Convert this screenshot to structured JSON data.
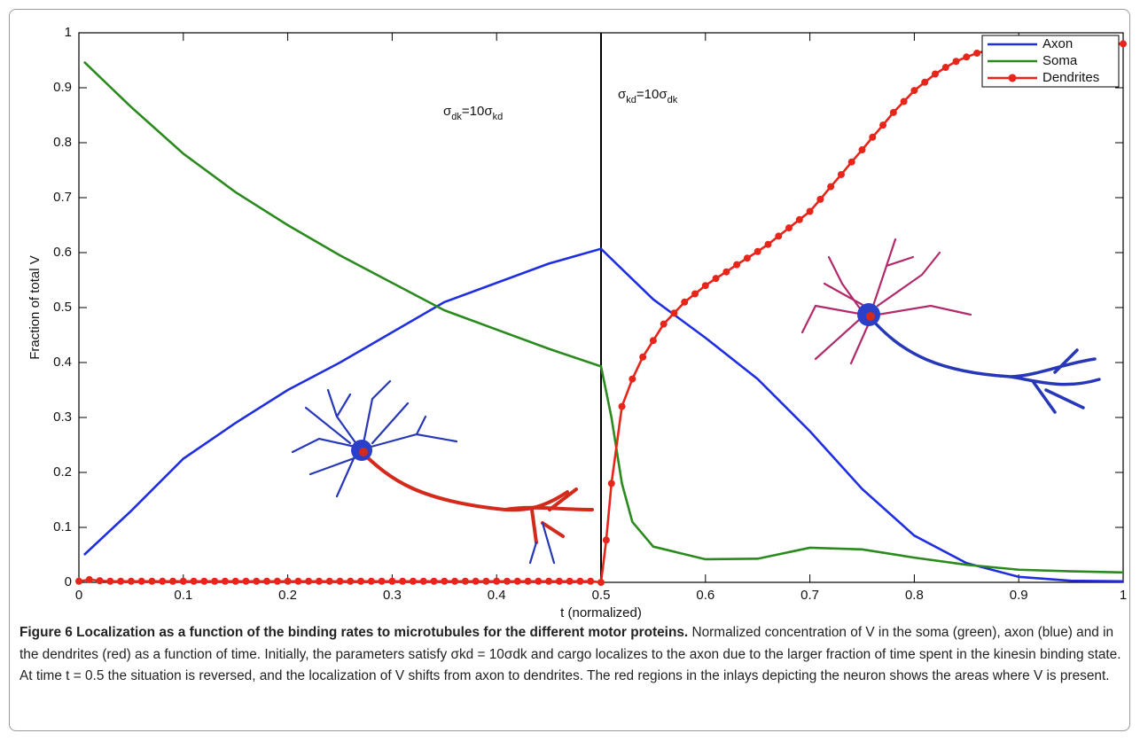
{
  "chart_data": {
    "type": "line",
    "xlabel": "t (normalized)",
    "ylabel": "Fraction of total V",
    "xlim": [
      0,
      1
    ],
    "ylim": [
      0,
      1
    ],
    "xticks": [
      0,
      0.1,
      0.2,
      0.3,
      0.4,
      0.5,
      0.6,
      0.7,
      0.8,
      0.9,
      1
    ],
    "yticks": [
      0,
      0.1,
      0.2,
      0.3,
      0.4,
      0.5,
      0.6,
      0.7,
      0.8,
      0.9,
      1
    ],
    "grid": false,
    "legend": "upper right",
    "vline": 0.5,
    "annotations": [
      [
        "σ",
        "dk",
        "=10σ",
        "kd"
      ],
      [
        "σ",
        "kd",
        "=10σ",
        "dk"
      ]
    ],
    "series": [
      {
        "name": "Axon",
        "color": "#1f2ee0",
        "marker": false,
        "x": [
          0.005,
          0.05,
          0.1,
          0.15,
          0.2,
          0.25,
          0.3,
          0.35,
          0.4,
          0.45,
          0.5,
          0.52,
          0.55,
          0.6,
          0.65,
          0.7,
          0.75,
          0.8,
          0.85,
          0.9,
          0.95,
          1
        ],
        "values": [
          0.05,
          0.13,
          0.225,
          0.29,
          0.35,
          0.4,
          0.455,
          0.51,
          0.545,
          0.58,
          0.607,
          0.57,
          0.515,
          0.445,
          0.37,
          0.275,
          0.17,
          0.085,
          0.035,
          0.01,
          0.003,
          0.002
        ]
      },
      {
        "name": "Soma",
        "color": "#2a8a1e",
        "marker": false,
        "x": [
          0.005,
          0.05,
          0.1,
          0.15,
          0.2,
          0.25,
          0.3,
          0.35,
          0.4,
          0.45,
          0.5,
          0.51,
          0.52,
          0.53,
          0.55,
          0.6,
          0.65,
          0.7,
          0.75,
          0.8,
          0.85,
          0.9,
          0.95,
          1
        ],
        "values": [
          0.947,
          0.865,
          0.78,
          0.71,
          0.65,
          0.595,
          0.545,
          0.495,
          0.46,
          0.425,
          0.393,
          0.3,
          0.18,
          0.11,
          0.065,
          0.042,
          0.043,
          0.063,
          0.06,
          0.045,
          0.032,
          0.023,
          0.02,
          0.018
        ]
      },
      {
        "name": "Dendrites",
        "color": "#e8251a",
        "marker": true,
        "x": [
          0,
          0.01,
          0.02,
          0.03,
          0.04,
          0.05,
          0.06,
          0.07,
          0.08,
          0.09,
          0.1,
          0.11,
          0.12,
          0.13,
          0.14,
          0.15,
          0.16,
          0.17,
          0.18,
          0.19,
          0.2,
          0.21,
          0.22,
          0.23,
          0.24,
          0.25,
          0.26,
          0.27,
          0.28,
          0.29,
          0.3,
          0.31,
          0.32,
          0.33,
          0.34,
          0.35,
          0.36,
          0.37,
          0.38,
          0.39,
          0.4,
          0.41,
          0.42,
          0.43,
          0.44,
          0.45,
          0.46,
          0.47,
          0.48,
          0.49,
          0.5,
          0.505,
          0.51,
          0.52,
          0.53,
          0.54,
          0.55,
          0.56,
          0.57,
          0.58,
          0.59,
          0.6,
          0.61,
          0.62,
          0.63,
          0.64,
          0.65,
          0.66,
          0.67,
          0.68,
          0.69,
          0.7,
          0.71,
          0.72,
          0.73,
          0.74,
          0.75,
          0.76,
          0.77,
          0.78,
          0.79,
          0.8,
          0.81,
          0.82,
          0.83,
          0.84,
          0.85,
          0.86,
          0.87,
          0.88,
          0.89,
          0.9,
          0.91,
          0.92,
          0.93,
          0.94,
          0.95,
          0.96,
          0.97,
          0.98,
          0.99,
          1
        ],
        "values": [
          0.002,
          0.005,
          0.003,
          0.002,
          0.002,
          0.002,
          0.002,
          0.002,
          0.002,
          0.002,
          0.002,
          0.002,
          0.002,
          0.002,
          0.002,
          0.002,
          0.002,
          0.002,
          0.002,
          0.002,
          0.002,
          0.002,
          0.002,
          0.002,
          0.002,
          0.002,
          0.002,
          0.002,
          0.002,
          0.002,
          0.002,
          0.002,
          0.002,
          0.002,
          0.002,
          0.002,
          0.002,
          0.002,
          0.002,
          0.002,
          0.002,
          0.002,
          0.002,
          0.002,
          0.002,
          0.002,
          0.002,
          0.002,
          0.002,
          0.002,
          0,
          0.077,
          0.18,
          0.32,
          0.37,
          0.41,
          0.44,
          0.47,
          0.49,
          0.51,
          0.525,
          0.54,
          0.553,
          0.565,
          0.578,
          0.59,
          0.602,
          0.615,
          0.63,
          0.645,
          0.66,
          0.675,
          0.697,
          0.72,
          0.742,
          0.765,
          0.787,
          0.81,
          0.832,
          0.855,
          0.875,
          0.895,
          0.91,
          0.925,
          0.937,
          0.948,
          0.956,
          0.963,
          0.968,
          0.972,
          0.975,
          0.977,
          0.978,
          0.979,
          0.979,
          0.98,
          0.98,
          0.98,
          0.98,
          0.98,
          0.98,
          0.98
        ]
      }
    ]
  },
  "caption": {
    "title": "Figure 6 Localization as a function of the binding rates to microtubules for the different motor proteins.",
    "body": "Normalized concentration of V in the soma (green), axon (blue) and in the dendrites (red) as a function of time. Initially, the parameters satisfy σkd = 10σdk and cargo localizes to the axon due to the larger fraction of time spent in the kinesin binding state. At time t = 0.5 the situation is reversed, and the localization of V shifts from axon to dendrites. The red regions in the inlays depicting the neuron shows the areas where V is present."
  }
}
